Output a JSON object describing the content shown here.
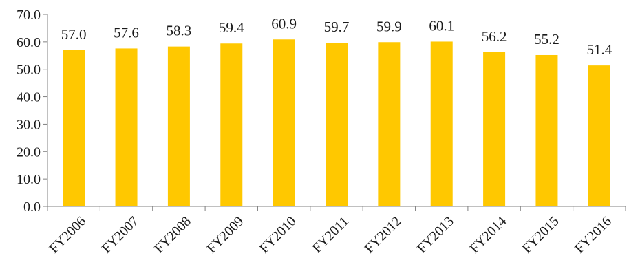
{
  "chart_data": {
    "type": "bar",
    "categories": [
      "FY2006",
      "FY2007",
      "FY2008",
      "FY2009",
      "FY2010",
      "FY2011",
      "FY2012",
      "FY2013",
      "FY2014",
      "FY2015",
      "FY2016"
    ],
    "values": [
      57.0,
      57.6,
      58.3,
      59.4,
      60.9,
      59.7,
      59.9,
      60.1,
      56.2,
      55.2,
      51.4
    ],
    "data_labels": [
      "57.0",
      "57.6",
      "58.3",
      "59.4",
      "60.9",
      "59.7",
      "59.9",
      "60.1",
      "56.2",
      "55.2",
      "51.4"
    ],
    "y_ticks": [
      "0.0",
      "10.0",
      "20.0",
      "30.0",
      "40.0",
      "50.0",
      "60.0",
      "70.0"
    ],
    "ylim": [
      0,
      70
    ],
    "title": "",
    "xlabel": "",
    "ylabel": "",
    "grid": false,
    "legend": "none",
    "bar_color": "#FFC800",
    "axis_color": "#808080"
  }
}
